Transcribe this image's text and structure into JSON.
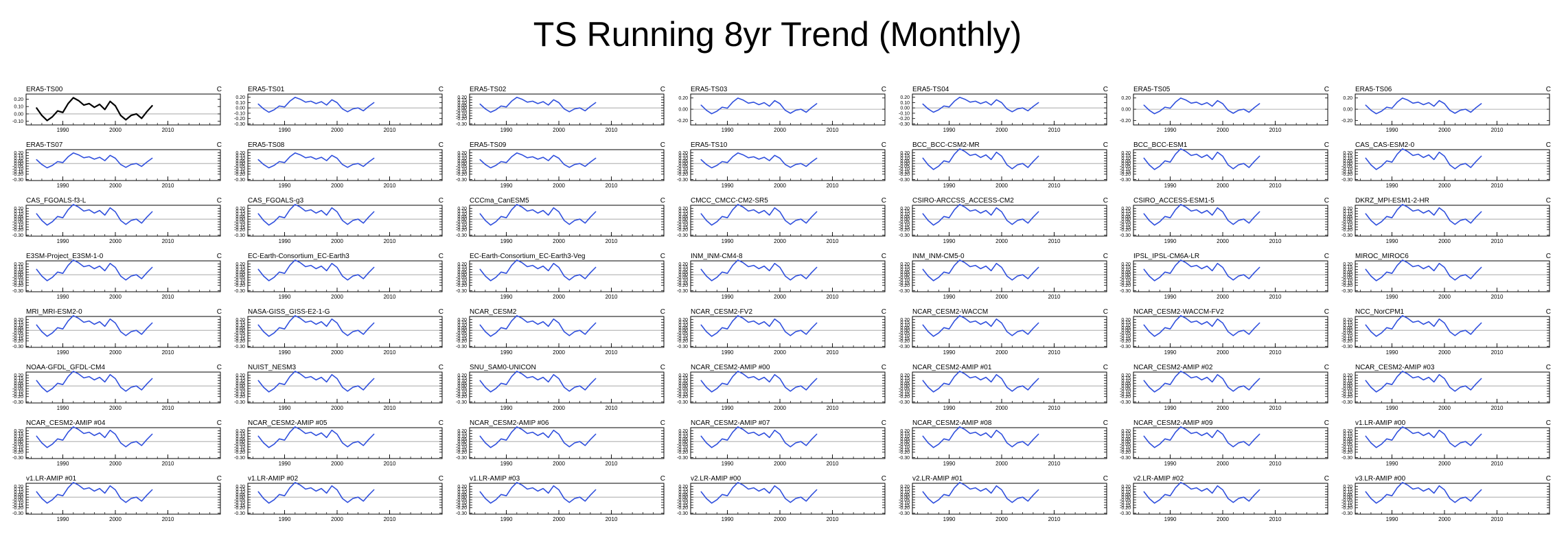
{
  "title": "TS Running 8yr Trend (Monthly)",
  "chart_data": {
    "type": "line",
    "units": "C",
    "x_range": [
      1983,
      2020
    ],
    "x_ticks": [
      1990,
      2000,
      2010
    ],
    "y_tick_labels": {
      "obs": [
        "0.20",
        "0.10",
        "0.00",
        "-0.10"
      ],
      "obs_wide": [
        "0.20",
        "0.10",
        "0.00",
        "-0.10",
        "-0.20",
        "-0.30"
      ],
      "ts03": [
        "0.20",
        "0.00",
        "-0.20"
      ],
      "full": [
        "0.20",
        "0.15",
        "0.10",
        "0.05",
        "0.00",
        "-0.05",
        "-0.10",
        "-0.15",
        "-0.20",
        "-0.30"
      ],
      "mid": [
        "0.20",
        "0.10",
        "0.00",
        "-0.10",
        "-0.20",
        "-0.30"
      ]
    },
    "series": {
      "x": [
        1985,
        1986,
        1987,
        1988,
        1989,
        1990,
        1991,
        1992,
        1993,
        1994,
        1995,
        1996,
        1997,
        1998,
        1999,
        2000,
        2001,
        2002,
        2003,
        2004,
        2005,
        2006,
        2007
      ],
      "values": [
        0.08,
        -0.02,
        -0.09,
        -0.04,
        0.04,
        0.02,
        0.14,
        0.22,
        0.18,
        0.12,
        0.14,
        0.09,
        0.13,
        0.06,
        0.17,
        0.11,
        -0.02,
        -0.08,
        -0.02,
        0.0,
        -0.06,
        0.03,
        0.11
      ]
    },
    "panels": [
      {
        "name": "ERA5-TS00",
        "color": "#000000",
        "ylim": [
          -0.15,
          0.27
        ],
        "yt": "obs",
        "amp": 1.0
      },
      {
        "name": "ERA5-TS01",
        "color": "#2f4fdd",
        "ylim": [
          -0.32,
          0.26
        ],
        "yt": "obs_wide",
        "amp": 0.9
      },
      {
        "name": "ERA5-TS02",
        "color": "#2f4fdd",
        "ylim": [
          -0.32,
          0.26
        ],
        "yt": "full",
        "amp": 0.9
      },
      {
        "name": "ERA5-TS03",
        "color": "#2f4fdd",
        "ylim": [
          -0.28,
          0.27
        ],
        "yt": "ts03",
        "amp": 0.9
      },
      {
        "name": "ERA5-TS04",
        "color": "#2f4fdd",
        "ylim": [
          -0.32,
          0.26
        ],
        "yt": "obs_wide",
        "amp": 0.9
      },
      {
        "name": "ERA5-TS05",
        "color": "#2f4fdd",
        "ylim": [
          -0.28,
          0.27
        ],
        "yt": "ts03",
        "amp": 0.9
      },
      {
        "name": "ERA5-TS06",
        "color": "#2f4fdd",
        "ylim": [
          -0.28,
          0.27
        ],
        "yt": "ts03",
        "amp": 0.9
      },
      {
        "name": "ERA5-TS07",
        "color": "#2f4fdd",
        "ylim": [
          -0.32,
          0.26
        ],
        "yt": "full",
        "amp": 0.9
      },
      {
        "name": "ERA5-TS08",
        "color": "#2f4fdd",
        "ylim": [
          -0.32,
          0.26
        ],
        "yt": "full",
        "amp": 0.9
      },
      {
        "name": "ERA5-TS09",
        "color": "#2f4fdd",
        "ylim": [
          -0.32,
          0.26
        ],
        "yt": "full",
        "amp": 0.9
      },
      {
        "name": "ERA5-TS10",
        "color": "#2f4fdd",
        "ylim": [
          -0.32,
          0.26
        ],
        "yt": "full",
        "amp": 0.9
      },
      {
        "name": "BCC_BCC-CSM2-MR",
        "color": "#2f4fdd",
        "ylim": [
          -0.32,
          0.26
        ],
        "yt": "full",
        "amp": 1.25
      },
      {
        "name": "BCC_BCC-ESM1",
        "color": "#2f4fdd",
        "ylim": [
          -0.32,
          0.26
        ],
        "yt": "full",
        "amp": 1.25
      },
      {
        "name": "CAS_CAS-ESM2-0",
        "color": "#2f4fdd",
        "ylim": [
          -0.32,
          0.26
        ],
        "yt": "full",
        "amp": 1.25
      },
      {
        "name": "CAS_FGOALS-f3-L",
        "color": "#2f4fdd",
        "ylim": [
          -0.32,
          0.26
        ],
        "yt": "full",
        "amp": 1.25
      },
      {
        "name": "CAS_FGOALS-g3",
        "color": "#2f4fdd",
        "ylim": [
          -0.32,
          0.26
        ],
        "yt": "full",
        "amp": 1.25
      },
      {
        "name": "CCCma_CanESM5",
        "color": "#2f4fdd",
        "ylim": [
          -0.32,
          0.26
        ],
        "yt": "full",
        "amp": 1.25
      },
      {
        "name": "CMCC_CMCC-CM2-SR5",
        "color": "#2f4fdd",
        "ylim": [
          -0.32,
          0.26
        ],
        "yt": "full",
        "amp": 1.25
      },
      {
        "name": "CSIRO-ARCCSS_ACCESS-CM2",
        "color": "#2f4fdd",
        "ylim": [
          -0.32,
          0.26
        ],
        "yt": "full",
        "amp": 1.25
      },
      {
        "name": "CSIRO_ACCESS-ESM1-5",
        "color": "#2f4fdd",
        "ylim": [
          -0.32,
          0.26
        ],
        "yt": "full",
        "amp": 1.25
      },
      {
        "name": "DKRZ_MPI-ESM1-2-HR",
        "color": "#2f4fdd",
        "ylim": [
          -0.32,
          0.26
        ],
        "yt": "full",
        "amp": 1.25
      },
      {
        "name": "E3SM-Project_E3SM-1-0",
        "color": "#2f4fdd",
        "ylim": [
          -0.32,
          0.26
        ],
        "yt": "full",
        "amp": 1.25
      },
      {
        "name": "EC-Earth-Consortium_EC-Earth3",
        "color": "#2f4fdd",
        "ylim": [
          -0.32,
          0.26
        ],
        "yt": "full",
        "amp": 1.25
      },
      {
        "name": "EC-Earth-Consortium_EC-Earth3-Veg",
        "color": "#2f4fdd",
        "ylim": [
          -0.32,
          0.26
        ],
        "yt": "full",
        "amp": 1.25
      },
      {
        "name": "INM_INM-CM4-8",
        "color": "#2f4fdd",
        "ylim": [
          -0.32,
          0.26
        ],
        "yt": "full",
        "amp": 1.25
      },
      {
        "name": "INM_INM-CM5-0",
        "color": "#2f4fdd",
        "ylim": [
          -0.32,
          0.26
        ],
        "yt": "full",
        "amp": 1.25
      },
      {
        "name": "IPSL_IPSL-CM6A-LR",
        "color": "#2f4fdd",
        "ylim": [
          -0.32,
          0.26
        ],
        "yt": "full",
        "amp": 1.25
      },
      {
        "name": "MIROC_MIROC6",
        "color": "#2f4fdd",
        "ylim": [
          -0.32,
          0.26
        ],
        "yt": "full",
        "amp": 1.25
      },
      {
        "name": "MRI_MRI-ESM2-0",
        "color": "#2f4fdd",
        "ylim": [
          -0.32,
          0.26
        ],
        "yt": "full",
        "amp": 1.25
      },
      {
        "name": "NASA-GISS_GISS-E2-1-G",
        "color": "#2f4fdd",
        "ylim": [
          -0.32,
          0.26
        ],
        "yt": "full",
        "amp": 1.25
      },
      {
        "name": "NCAR_CESM2",
        "color": "#2f4fdd",
        "ylim": [
          -0.32,
          0.26
        ],
        "yt": "full",
        "amp": 1.25
      },
      {
        "name": "NCAR_CESM2-FV2",
        "color": "#2f4fdd",
        "ylim": [
          -0.32,
          0.26
        ],
        "yt": "full",
        "amp": 1.25
      },
      {
        "name": "NCAR_CESM2-WACCM",
        "color": "#2f4fdd",
        "ylim": [
          -0.32,
          0.26
        ],
        "yt": "full",
        "amp": 1.25
      },
      {
        "name": "NCAR_CESM2-WACCM-FV2",
        "color": "#2f4fdd",
        "ylim": [
          -0.32,
          0.26
        ],
        "yt": "full",
        "amp": 1.25
      },
      {
        "name": "NCC_NorCPM1",
        "color": "#2f4fdd",
        "ylim": [
          -0.32,
          0.26
        ],
        "yt": "full",
        "amp": 1.25
      },
      {
        "name": "NOAA-GFDL_GFDL-CM4",
        "color": "#2f4fdd",
        "ylim": [
          -0.32,
          0.26
        ],
        "yt": "full",
        "amp": 1.25
      },
      {
        "name": "NUIST_NESM3",
        "color": "#2f4fdd",
        "ylim": [
          -0.32,
          0.26
        ],
        "yt": "full",
        "amp": 1.25
      },
      {
        "name": "SNU_SAM0-UNICON",
        "color": "#2f4fdd",
        "ylim": [
          -0.32,
          0.26
        ],
        "yt": "full",
        "amp": 1.25
      },
      {
        "name": "NCAR_CESM2-AMIP  #00",
        "color": "#2f4fdd",
        "ylim": [
          -0.32,
          0.26
        ],
        "yt": "full",
        "amp": 1.25
      },
      {
        "name": "NCAR_CESM2-AMIP  #01",
        "color": "#2f4fdd",
        "ylim": [
          -0.32,
          0.26
        ],
        "yt": "full",
        "amp": 1.25
      },
      {
        "name": "NCAR_CESM2-AMIP  #02",
        "color": "#2f4fdd",
        "ylim": [
          -0.32,
          0.26
        ],
        "yt": "full",
        "amp": 1.25
      },
      {
        "name": "NCAR_CESM2-AMIP  #03",
        "color": "#2f4fdd",
        "ylim": [
          -0.32,
          0.26
        ],
        "yt": "full",
        "amp": 1.25
      },
      {
        "name": "NCAR_CESM2-AMIP  #04",
        "color": "#2f4fdd",
        "ylim": [
          -0.32,
          0.26
        ],
        "yt": "full",
        "amp": 1.25
      },
      {
        "name": "NCAR_CESM2-AMIP  #05",
        "color": "#2f4fdd",
        "ylim": [
          -0.32,
          0.26
        ],
        "yt": "full",
        "amp": 1.25
      },
      {
        "name": "NCAR_CESM2-AMIP  #06",
        "color": "#2f4fdd",
        "ylim": [
          -0.32,
          0.26
        ],
        "yt": "full",
        "amp": 1.25
      },
      {
        "name": "NCAR_CESM2-AMIP  #07",
        "color": "#2f4fdd",
        "ylim": [
          -0.32,
          0.26
        ],
        "yt": "full",
        "amp": 1.25
      },
      {
        "name": "NCAR_CESM2-AMIP  #08",
        "color": "#2f4fdd",
        "ylim": [
          -0.32,
          0.26
        ],
        "yt": "full",
        "amp": 1.25
      },
      {
        "name": "NCAR_CESM2-AMIP  #09",
        "color": "#2f4fdd",
        "ylim": [
          -0.32,
          0.26
        ],
        "yt": "full",
        "amp": 1.25
      },
      {
        "name": "v1.LR-AMIP  #00",
        "color": "#2f4fdd",
        "ylim": [
          -0.32,
          0.26
        ],
        "yt": "full",
        "amp": 1.25
      },
      {
        "name": "v1.LR-AMIP  #01",
        "color": "#2f4fdd",
        "ylim": [
          -0.32,
          0.26
        ],
        "yt": "full",
        "amp": 1.25
      },
      {
        "name": "v1.LR-AMIP  #02",
        "color": "#2f4fdd",
        "ylim": [
          -0.32,
          0.26
        ],
        "yt": "full",
        "amp": 1.25
      },
      {
        "name": "v1.LR-AMIP  #03",
        "color": "#2f4fdd",
        "ylim": [
          -0.32,
          0.26
        ],
        "yt": "full",
        "amp": 1.25
      },
      {
        "name": "v2.LR-AMIP  #00",
        "color": "#2f4fdd",
        "ylim": [
          -0.32,
          0.26
        ],
        "yt": "full",
        "amp": 1.25
      },
      {
        "name": "v2.LR-AMIP  #01",
        "color": "#2f4fdd",
        "ylim": [
          -0.32,
          0.26
        ],
        "yt": "full",
        "amp": 1.25
      },
      {
        "name": "v2.LR-AMIP  #02",
        "color": "#2f4fdd",
        "ylim": [
          -0.32,
          0.26
        ],
        "yt": "full",
        "amp": 1.25
      },
      {
        "name": "v3.LR-AMIP  #00",
        "color": "#2f4fdd",
        "ylim": [
          -0.32,
          0.26
        ],
        "yt": "full",
        "amp": 1.25
      }
    ]
  }
}
